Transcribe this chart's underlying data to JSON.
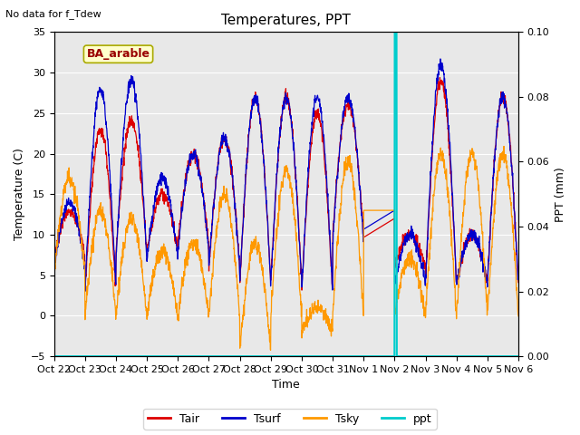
{
  "title": "Temperatures, PPT",
  "top_left_text": "No data for f_Tdew",
  "annotation_text": "BA_arable",
  "xlabel": "Time",
  "ylabel_left": "Temperature (C)",
  "ylabel_right": "PPT (mm)",
  "ylim_left": [
    -5,
    35
  ],
  "ylim_right": [
    0.0,
    0.1
  ],
  "yticks_left": [
    -5,
    0,
    5,
    10,
    15,
    20,
    25,
    30,
    35
  ],
  "yticks_right": [
    0.0,
    0.02,
    0.04,
    0.06,
    0.08,
    0.1
  ],
  "xtick_labels": [
    "Oct 22",
    "Oct 23",
    "Oct 24",
    "Oct 25",
    "Oct 26",
    "Oct 27",
    "Oct 28",
    "Oct 29",
    "Oct 30",
    "Oct 31",
    "Nov 1",
    "Nov 2",
    "Nov 3",
    "Nov 4",
    "Nov 5",
    "Nov 6"
  ],
  "color_Tair": "#dd0000",
  "color_Tsurf": "#0000cc",
  "color_Tsky": "#ff9900",
  "color_ppt": "#00cccc",
  "background_color": "#e8e8e8",
  "figsize": [
    6.4,
    4.8
  ],
  "dpi": 100
}
